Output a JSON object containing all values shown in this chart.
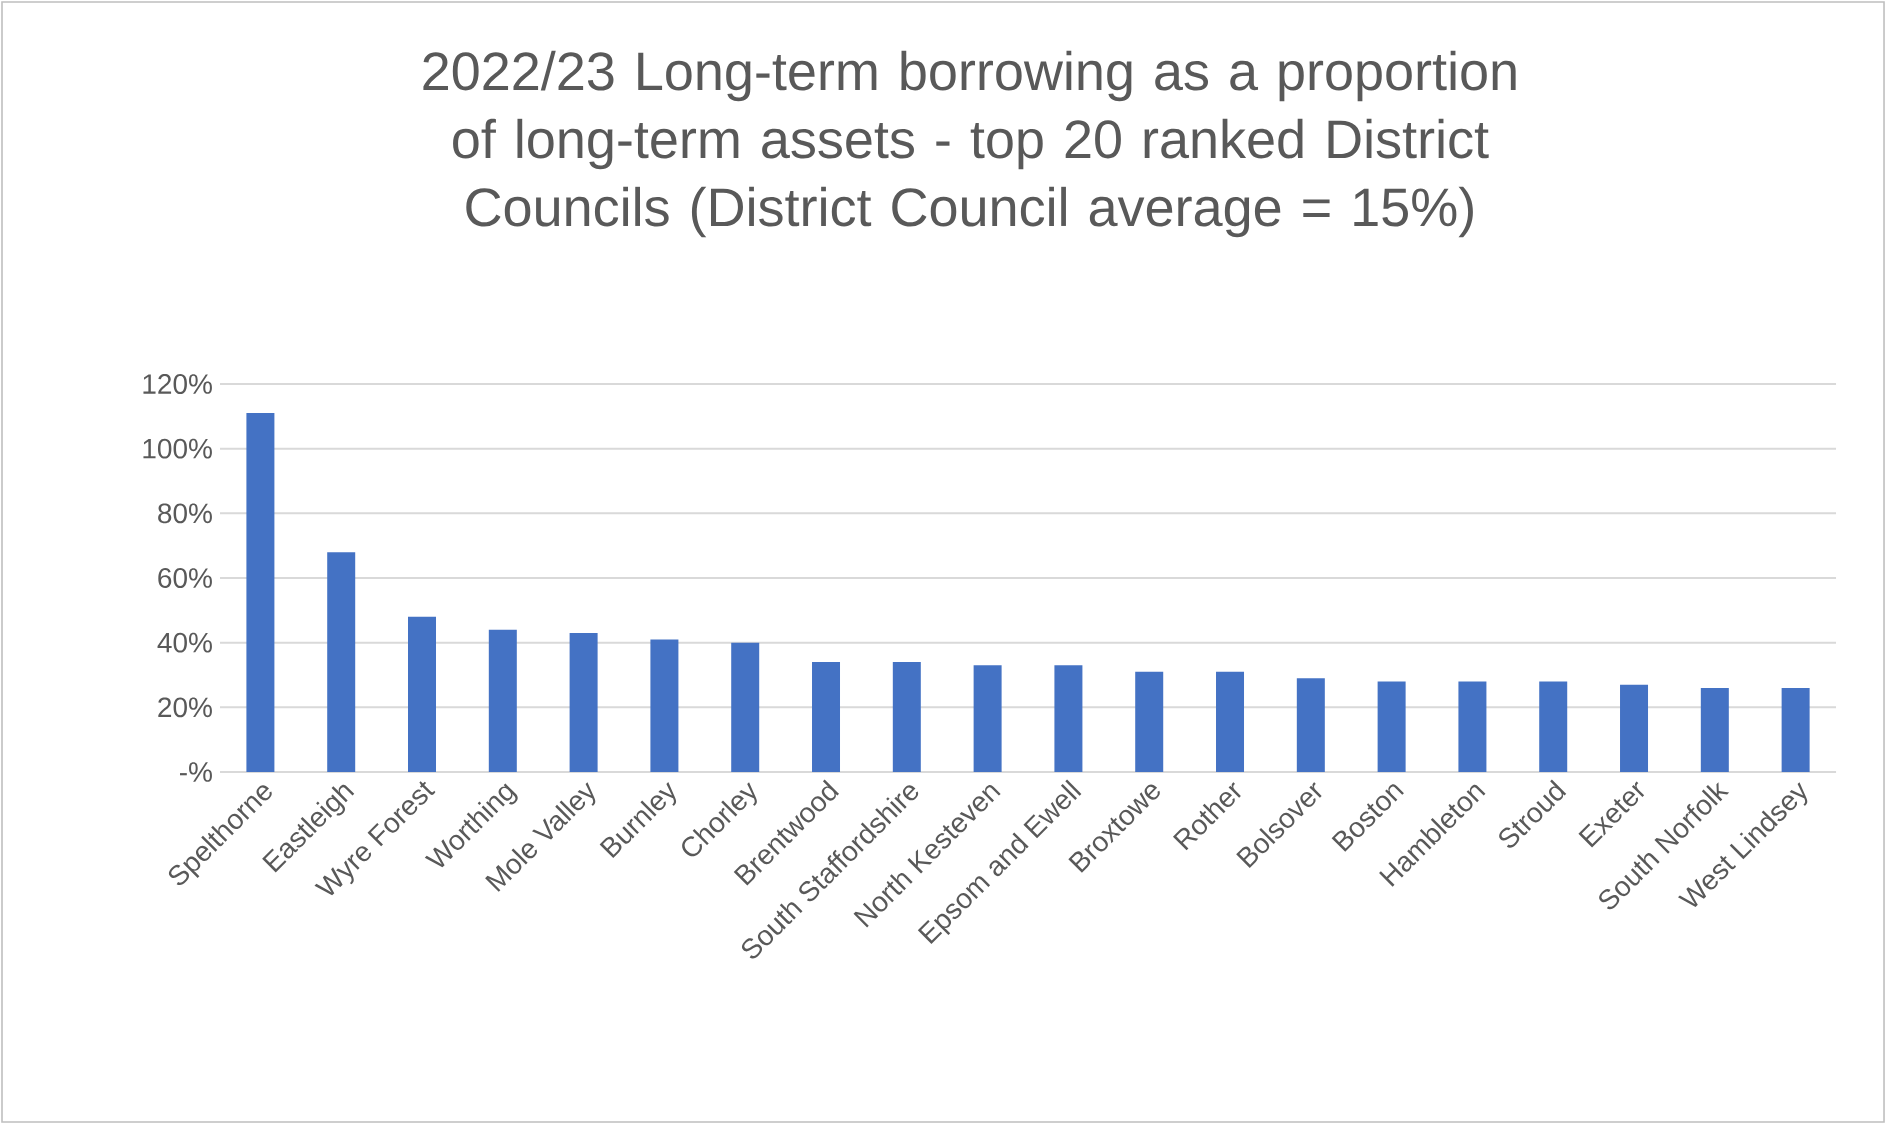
{
  "chart_data": {
    "type": "bar",
    "title": "2022/23 Long-term borrowing as a proportion of long-term assets - top 20 ranked District Councils (District Council average = 15%)",
    "categories": [
      "Spelthorne",
      "Eastleigh",
      "Wyre Forest",
      "Worthing",
      "Mole Valley",
      "Burnley",
      "Chorley",
      "Brentwood",
      "South Staffordshire",
      "North Kesteven",
      "Epsom and Ewell",
      "Broxtowe",
      "Rother",
      "Bolsover",
      "Boston",
      "Hambleton",
      "Stroud",
      "Exeter",
      "South Norfolk",
      "West Lindsey"
    ],
    "values": [
      111,
      68,
      48,
      44,
      43,
      41,
      40,
      34,
      34,
      33,
      33,
      31,
      31,
      29,
      28,
      28,
      28,
      27,
      26,
      26
    ],
    "color": "#4472c4",
    "ylim": [
      0,
      120
    ],
    "yticks": [
      {
        "value": 0,
        "label": "-%"
      },
      {
        "value": 20,
        "label": "20%"
      },
      {
        "value": 40,
        "label": "40%"
      },
      {
        "value": 60,
        "label": "60%"
      },
      {
        "value": 80,
        "label": "80%"
      },
      {
        "value": 100,
        "label": "100%"
      },
      {
        "value": 120,
        "label": "120%"
      }
    ],
    "grid": "y"
  }
}
